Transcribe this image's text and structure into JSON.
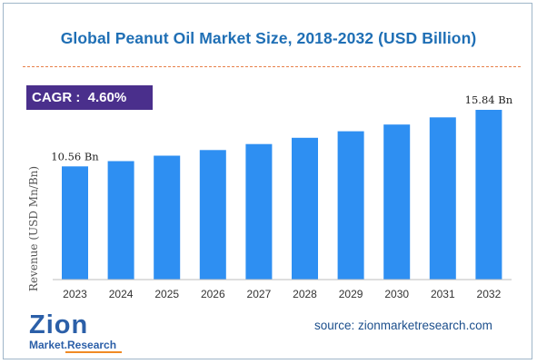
{
  "title": "Global Peanut Oil Market Size, 2018-2032 (USD Billion)",
  "cagr": "CAGR :  4.60%",
  "source": "source: zionmarketresearch.com",
  "logo": {
    "word": "Zion",
    "sub": "Market.Research"
  },
  "colors": {
    "bar": "#2e8ff2",
    "title": "#1f6fb5",
    "cagr_bg": "#4a2f8c",
    "divider": "#e8804a"
  },
  "chart_data": {
    "type": "bar",
    "title": "Global Peanut Oil Market Size, 2018-2032 (USD Billion)",
    "xlabel": "",
    "ylabel": "Revenue (USD Mn/Bn)",
    "categories": [
      "2023",
      "2024",
      "2025",
      "2026",
      "2027",
      "2028",
      "2029",
      "2030",
      "2031",
      "2032"
    ],
    "values": [
      10.56,
      11.05,
      11.56,
      12.09,
      12.65,
      13.23,
      13.84,
      14.47,
      15.14,
      15.84
    ],
    "data_labels": {
      "2023": "10.56 Bn",
      "2032": "15.84 Bn"
    },
    "ylim": [
      0,
      15.84
    ],
    "grid": false,
    "legend": "none"
  }
}
